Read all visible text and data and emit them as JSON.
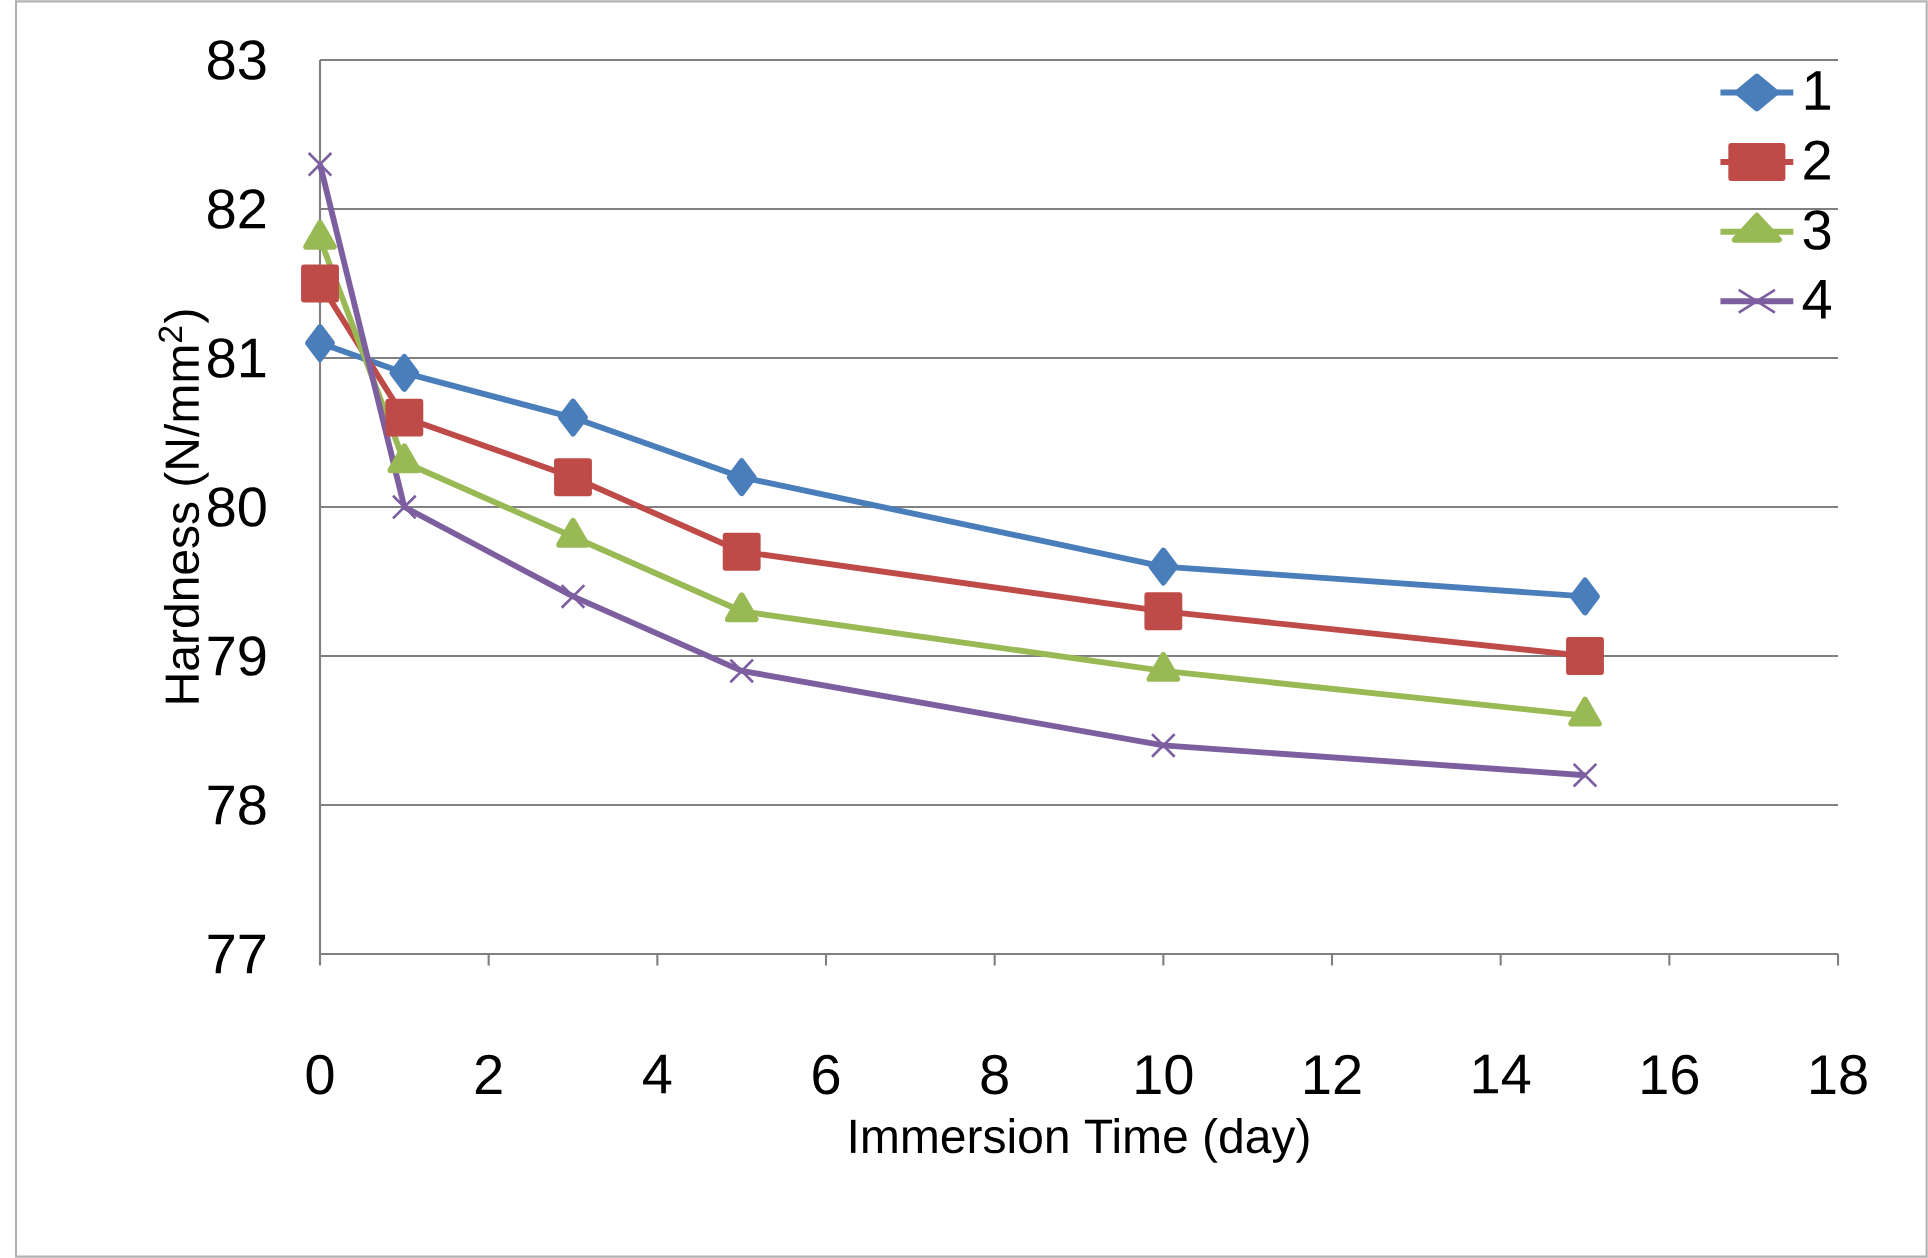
{
  "chart_data": {
    "type": "line",
    "xlabel": "Immersion Time (day)",
    "ylabel": "Hardness (N/mm$^{2}$)",
    "x": [
      0,
      1,
      3,
      5,
      10,
      15
    ],
    "series": [
      {
        "name": "1",
        "color": "#4a7ebb",
        "marker": "diamond",
        "values": [
          81.1,
          80.9,
          80.6,
          80.2,
          79.6,
          79.4
        ]
      },
      {
        "name": "2",
        "color": "#be4b48",
        "marker": "square",
        "values": [
          81.5,
          80.6,
          80.2,
          79.7,
          79.3,
          79.0
        ]
      },
      {
        "name": "3",
        "color": "#98b954",
        "marker": "triangle",
        "values": [
          81.8,
          80.3,
          79.8,
          79.3,
          78.9,
          78.6
        ]
      },
      {
        "name": "4",
        "color": "#7d5fa0",
        "marker": "cross",
        "values": [
          82.3,
          80.0,
          79.4,
          78.9,
          78.4,
          78.2
        ]
      }
    ],
    "xlim": [
      0,
      18
    ],
    "ylim": [
      77,
      83
    ],
    "xticks": [
      0,
      2,
      4,
      6,
      8,
      10,
      12,
      14,
      16,
      18
    ],
    "yticks": [
      77,
      78,
      79,
      80,
      81,
      82,
      83
    ],
    "grid": "y",
    "legend": "top right",
    "line_style": "solid"
  }
}
